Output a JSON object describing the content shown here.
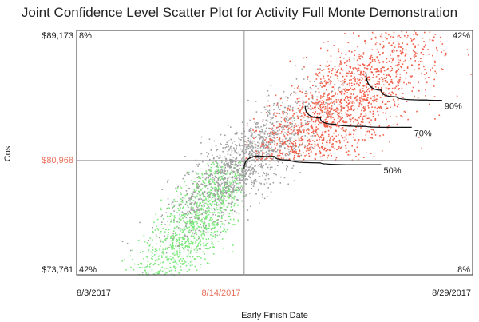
{
  "title": "Joint Confidence Level Scatter Plot for Activity Full Monte Demonstration",
  "colors": {
    "above_threshold": "#f0604a",
    "below_threshold": "#7ae87a",
    "other": "#a0a0a0",
    "highlight_label": "#e8725e",
    "crosshair": "#909090",
    "curve": "#111111"
  },
  "chart_data": {
    "type": "scatter",
    "title": "Joint Confidence Level Scatter Plot for Activity Full Monte Demonstration",
    "xlabel": "Early Finish Date",
    "ylabel": "Cost",
    "xlim": [
      "2017-08-03",
      "2017-08-29"
    ],
    "ylim": [
      73761,
      89173
    ],
    "x_ticks": [
      "8/3/2017",
      "8/14/2017",
      "8/29/2017"
    ],
    "y_ticks": [
      "$89,173",
      "$80,968",
      "$73,761"
    ],
    "selected_x": "8/14/2017",
    "selected_y": "$80,968",
    "quadrant_labels": {
      "top_left": "8%",
      "top_right": "42%",
      "bottom_left": "42%",
      "bottom_right": "8%"
    },
    "confidence_curves": [
      {
        "label": "50%",
        "points": [
          [
            "2017-08-14",
            80450
          ],
          [
            "2017-08-15",
            81250
          ],
          [
            "2017-08-16",
            81220
          ],
          [
            "2017-08-17",
            81000
          ],
          [
            "2017-08-19",
            80820
          ],
          [
            "2017-08-22",
            80700
          ],
          [
            "2017-08-23",
            80700
          ]
        ]
      },
      {
        "label": "70%",
        "points": [
          [
            "2017-08-18",
            84400
          ],
          [
            "2017-08-19",
            83650
          ],
          [
            "2017-08-20",
            83260
          ],
          [
            "2017-08-22",
            83120
          ],
          [
            "2017-08-24",
            83060
          ],
          [
            "2017-08-25",
            83060
          ]
        ]
      },
      {
        "label": "90%",
        "points": [
          [
            "2017-08-22",
            86500
          ],
          [
            "2017-08-23",
            85400
          ],
          [
            "2017-08-24",
            84980
          ],
          [
            "2017-08-26",
            84780
          ],
          [
            "2017-08-27",
            84760
          ]
        ]
      }
    ],
    "series": [
      {
        "group": "below_threshold",
        "color": "#7ae87a",
        "count": 1400,
        "center": [
          "2017-08-11",
          77400
        ],
        "spread_days": 2.4,
        "spread_cost": 1550,
        "trend": 1050
      },
      {
        "group": "other",
        "color": "#a0a0a0",
        "count": 1300,
        "center": [
          "2017-08-14",
          80900
        ],
        "spread_days": 2.5,
        "spread_cost": 1300,
        "trend": 700
      },
      {
        "group": "above_threshold",
        "color": "#f0604a",
        "count": 2000,
        "center": [
          "2017-08-20",
          84000
        ],
        "spread_days": 3.4,
        "spread_cost": 1800,
        "trend": 700
      }
    ]
  }
}
